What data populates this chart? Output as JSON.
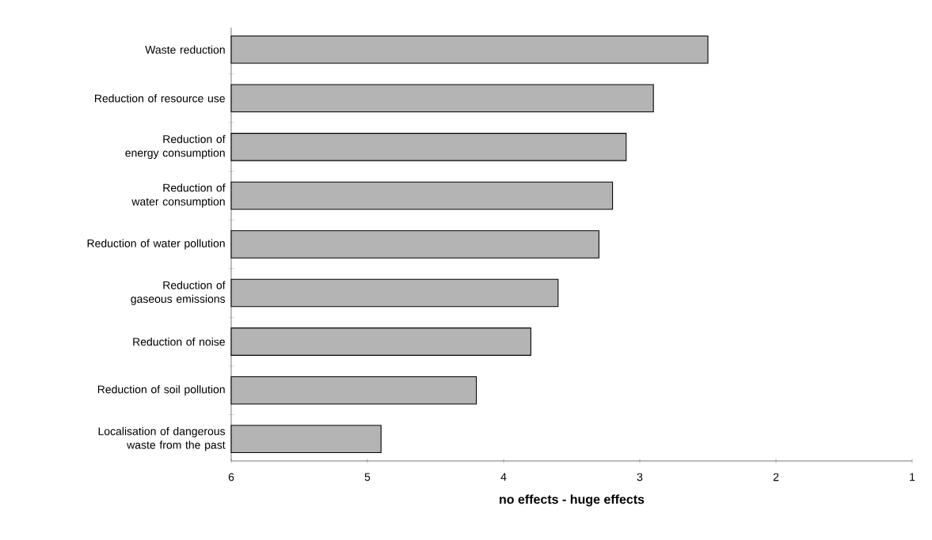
{
  "chart_data": {
    "type": "bar",
    "orientation": "horizontal",
    "xlabel": "no effects - huge effects",
    "categories": [
      "Waste reduction",
      "Reduction of resource use",
      "Reduction of energy consumption",
      "Reduction of water consumption",
      "Reduction of water pollution",
      "Reduction of gaseous emissions",
      "Reduction of noise",
      "Reduction of soil pollution",
      "Localisation of dangerous waste from the past"
    ],
    "values": [
      -3.5,
      -3.1,
      -2.9,
      -2.8,
      -2.7,
      -2.4,
      -2.2,
      -1.8,
      -1.1
    ],
    "base": [
      6,
      6,
      6,
      6,
      6,
      6,
      6,
      6,
      6
    ],
    "color": "#b4b4b4",
    "xlim": [
      6,
      1
    ],
    "xticks": [
      6,
      5,
      4,
      3,
      2,
      1
    ]
  }
}
